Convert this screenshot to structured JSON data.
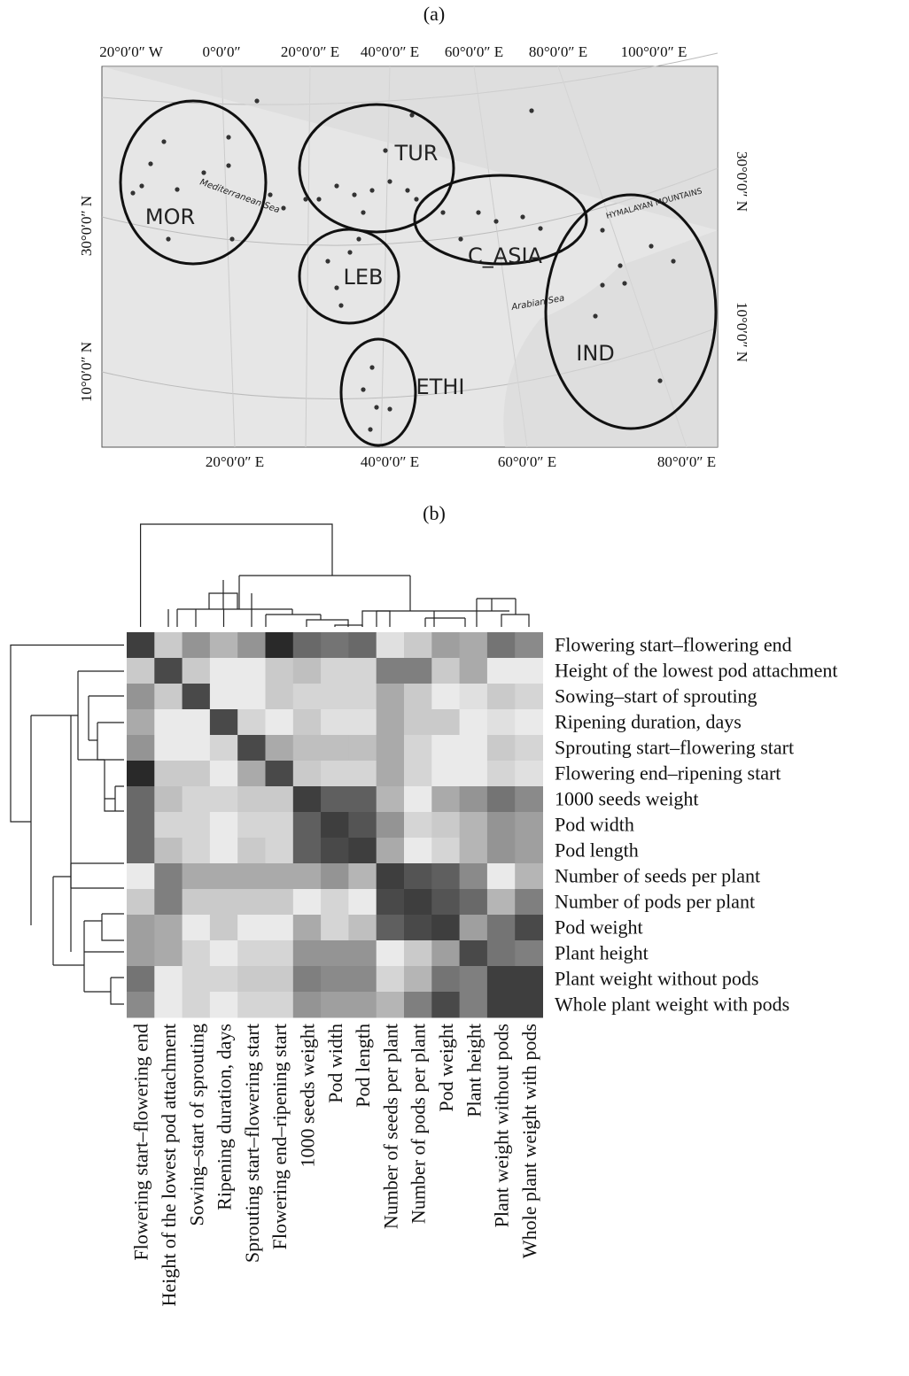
{
  "panel_a": {
    "label": "(a)",
    "top_axis_labels": [
      "20°0′0″ W",
      "0°0′0″",
      "20°0′0″ E",
      "40°0′0″ E",
      "60°0′0″ E",
      "80°0′0″ E",
      "100°0′0″ E"
    ],
    "bottom_axis_labels": [
      "20°0′0″ E",
      "40°0′0″ E",
      "60°0′0″ E",
      "80°0′0″ E"
    ],
    "left_axis_labels": [
      "30°0′0″ N",
      "10°0′0″ N"
    ],
    "right_axis_labels": [
      "30°0′0″ N",
      "10°0′0″ N"
    ],
    "regions": [
      "MOR",
      "TUR",
      "LEB",
      "C_ASIA",
      "IND",
      "ETHI"
    ],
    "map_labels": [
      "Mediterranean Sea",
      "HYMALAYAN MOUNTAINS",
      "Arabian Sea"
    ]
  },
  "panel_b": {
    "label": "(b)",
    "rows": [
      "Flowering start–flowering end",
      "Height of the lowest pod attachment",
      "Sowing–start of sprouting",
      "Ripening duration, days",
      "Sprouting start–flowering start",
      "Flowering end–ripening start",
      "1000 seeds weight",
      "Pod width",
      "Pod length",
      "Number of seeds per plant",
      "Number of pods per plant",
      "Pod weight",
      "Plant height",
      "Plant weight without pods",
      "Whole plant weight with pods"
    ],
    "columns": [
      "Flowering start–flowering end",
      "Height of the lowest pod attachment",
      "Sowing–start of sprouting",
      "Ripening duration, days",
      "Sprouting start–flowering start",
      "Flowering end–ripening start",
      "1000 seeds weight",
      "Pod width",
      "Pod length",
      "Number of seeds per plant",
      "Number of pods per plant",
      "Pod weight",
      "Plant height",
      "Plant weight without pods",
      "Whole plant weight with pods"
    ],
    "values": [
      [
        0.85,
        0.2,
        0.45,
        0.3,
        0.45,
        0.95,
        0.65,
        0.6,
        0.65,
        0.1,
        0.2,
        0.4,
        0.35,
        0.6,
        0.5
      ],
      [
        0.2,
        0.8,
        0.2,
        0.05,
        0.05,
        0.2,
        0.25,
        0.15,
        0.15,
        0.55,
        0.55,
        0.2,
        0.35,
        0.05,
        0.05
      ],
      [
        0.45,
        0.2,
        0.8,
        0.05,
        0.05,
        0.2,
        0.15,
        0.15,
        0.15,
        0.35,
        0.2,
        0.05,
        0.1,
        0.2,
        0.15
      ],
      [
        0.35,
        0.05,
        0.05,
        0.8,
        0.15,
        0.05,
        0.2,
        0.1,
        0.1,
        0.35,
        0.2,
        0.2,
        0.05,
        0.1,
        0.05
      ],
      [
        0.45,
        0.05,
        0.05,
        0.15,
        0.8,
        0.35,
        0.25,
        0.25,
        0.25,
        0.35,
        0.15,
        0.05,
        0.05,
        0.2,
        0.15
      ],
      [
        0.95,
        0.2,
        0.2,
        0.05,
        0.35,
        0.8,
        0.2,
        0.15,
        0.15,
        0.35,
        0.15,
        0.05,
        0.05,
        0.15,
        0.1
      ],
      [
        0.65,
        0.25,
        0.15,
        0.15,
        0.2,
        0.2,
        0.85,
        0.7,
        0.7,
        0.3,
        0.05,
        0.35,
        0.45,
        0.6,
        0.5
      ],
      [
        0.65,
        0.15,
        0.15,
        0.05,
        0.15,
        0.15,
        0.7,
        0.85,
        0.75,
        0.45,
        0.15,
        0.2,
        0.3,
        0.45,
        0.4
      ],
      [
        0.65,
        0.25,
        0.15,
        0.05,
        0.2,
        0.15,
        0.7,
        0.8,
        0.85,
        0.35,
        0.05,
        0.15,
        0.3,
        0.45,
        0.4
      ],
      [
        0.05,
        0.55,
        0.35,
        0.35,
        0.35,
        0.35,
        0.35,
        0.45,
        0.3,
        0.85,
        0.75,
        0.7,
        0.5,
        0.05,
        0.3
      ],
      [
        0.2,
        0.55,
        0.2,
        0.2,
        0.2,
        0.2,
        0.05,
        0.15,
        0.05,
        0.8,
        0.85,
        0.75,
        0.65,
        0.3,
        0.55
      ],
      [
        0.4,
        0.35,
        0.05,
        0.2,
        0.05,
        0.05,
        0.35,
        0.15,
        0.25,
        0.7,
        0.8,
        0.85,
        0.4,
        0.6,
        0.8
      ],
      [
        0.4,
        0.35,
        0.15,
        0.05,
        0.15,
        0.15,
        0.45,
        0.45,
        0.45,
        0.05,
        0.2,
        0.4,
        0.8,
        0.6,
        0.55
      ],
      [
        0.6,
        0.05,
        0.15,
        0.15,
        0.2,
        0.2,
        0.55,
        0.5,
        0.5,
        0.15,
        0.3,
        0.6,
        0.55,
        0.85,
        0.85
      ],
      [
        0.5,
        0.05,
        0.15,
        0.05,
        0.15,
        0.15,
        0.45,
        0.4,
        0.4,
        0.3,
        0.55,
        0.8,
        0.55,
        0.85,
        0.85
      ]
    ]
  }
}
